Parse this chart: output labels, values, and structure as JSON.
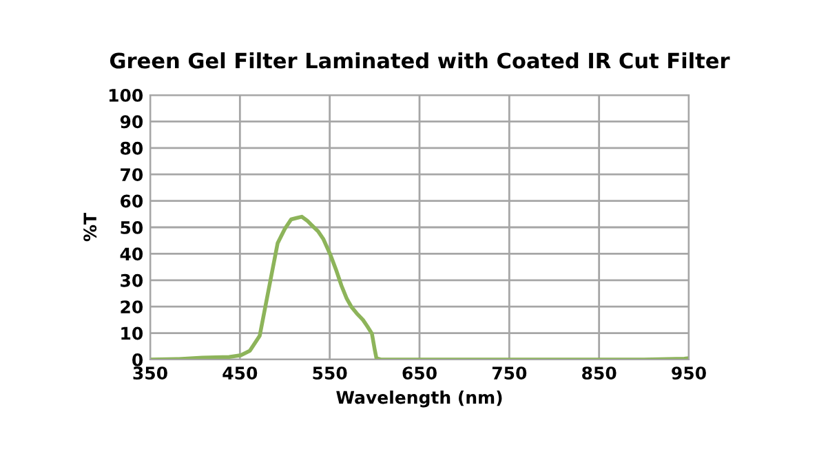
{
  "chart_data": {
    "type": "line",
    "title": "Green Gel Filter Laminated with Coated IR Cut Filter",
    "xlabel": "Wavelength (nm)",
    "ylabel": "%T",
    "series": [
      {
        "color": "#8db45a",
        "x": [
          350,
          382,
          408,
          438,
          451,
          461,
          472,
          484,
          492,
          500,
          507,
          513,
          519,
          525,
          530,
          537,
          543,
          551,
          557,
          563,
          569,
          574,
          580,
          587,
          592,
          597,
          600,
          602,
          607,
          700,
          730,
          800,
          900,
          945,
          950
        ],
        "values": [
          0,
          0.2,
          0.7,
          1,
          1.6,
          3.3,
          9,
          30,
          44,
          49.4,
          53,
          53.5,
          54,
          52.5,
          50.8,
          48.5,
          45.5,
          39.4,
          34,
          28,
          23,
          20,
          17.5,
          15,
          12.5,
          9.8,
          4,
          0.5,
          0,
          0,
          0,
          0,
          0,
          0.3,
          0.5
        ]
      }
    ],
    "xlim": [
      350,
      950
    ],
    "xticks": [
      350,
      450,
      550,
      650,
      750,
      850,
      950
    ],
    "ylim": [
      0,
      100
    ],
    "yticks": [
      0,
      10,
      20,
      30,
      40,
      50,
      60,
      70,
      80,
      90,
      100
    ],
    "grid": true,
    "legend": false
  }
}
